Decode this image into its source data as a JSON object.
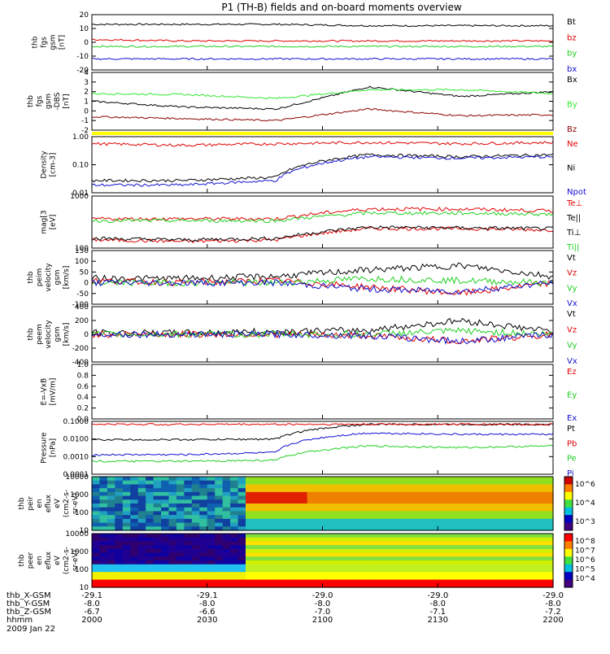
{
  "title": "P1 (TH-B) fields and on-board moments overview",
  "date": "2009 Jan 22",
  "time_ticks": [
    "2000",
    "2030",
    "2100",
    "2130",
    "2200"
  ],
  "ephemeris": [
    {
      "label": "thb_X-GSM",
      "values": [
        "-29.1",
        "-29.1",
        "-29.0",
        "-29.0",
        "-29.0"
      ]
    },
    {
      "label": "thb_Y-GSM",
      "values": [
        "-8.0",
        "-8.0",
        "-8.0",
        "-8.0",
        "-8.0"
      ]
    },
    {
      "label": "thb_Z-GSM",
      "values": [
        "-6.7",
        "-6.6",
        "-7.0",
        "-7.1",
        "-7.2"
      ]
    },
    {
      "label": "hhmm",
      "values": [
        "2000",
        "2030",
        "2100",
        "2130",
        "2200"
      ]
    }
  ],
  "colors": {
    "black": "#000000",
    "red": "#e00000",
    "green": "#20d020",
    "blue": "#1010d0",
    "darkred": "#8b0000",
    "lightgreen": "#30e830",
    "yellow": "#ffff00"
  },
  "chart_data": [
    {
      "type": "line",
      "panel": "fgs",
      "ylabel": [
        "thb",
        "fgs",
        "gsm",
        "[nT]"
      ],
      "ylim": [
        -20,
        20
      ],
      "yticks": [
        "20",
        "10",
        "0",
        "-10",
        "-20"
      ],
      "series": [
        {
          "name": "Bt",
          "values": [
            13,
            13,
            13,
            12,
            12,
            12
          ]
        },
        {
          "name": "bz",
          "values": [
            2,
            1,
            1,
            1,
            1,
            1
          ]
        },
        {
          "name": "by",
          "values": [
            -3,
            -3,
            -3,
            -3,
            -3,
            -3
          ]
        },
        {
          "name": "bx",
          "values": [
            -12,
            -12,
            -12,
            -12,
            -12,
            -12
          ]
        }
      ]
    },
    {
      "type": "line",
      "panel": "fgs_dbs",
      "ylabel": [
        "thb",
        "fgs",
        "gsm",
        "-DBS",
        "[nT]"
      ],
      "ylim": [
        -2,
        4
      ],
      "yticks": [
        "4",
        "3",
        "2",
        "1",
        "0",
        "-1",
        "-2"
      ],
      "series": [
        {
          "name": "Bx",
          "values": [
            1,
            0.4,
            0.2,
            2.5,
            1.5,
            2.0
          ]
        },
        {
          "name": "By",
          "values": [
            1.8,
            1.7,
            1.3,
            2.2,
            2.2,
            1.8
          ]
        },
        {
          "name": "Bz",
          "values": [
            -0.6,
            -0.8,
            -1.0,
            0.2,
            -0.5,
            -0.4
          ]
        }
      ]
    },
    {
      "type": "line",
      "panel": "density",
      "ylabel": [
        "Density",
        "[cm-3]"
      ],
      "yscale": "log",
      "ylim": [
        0.01,
        1.5
      ],
      "yticks": [
        "1.00",
        "0.10",
        "0.01"
      ],
      "series": [
        {
          "name": "Ne",
          "values": [
            0.8,
            0.7,
            0.8,
            0.9,
            0.8,
            0.9
          ]
        },
        {
          "name": "Ni",
          "values": [
            0.03,
            0.03,
            0.04,
            0.3,
            0.25,
            0.3
          ]
        },
        {
          "name": "Npot",
          "values": [
            0.02,
            0.02,
            0.03,
            0.25,
            0.22,
            0.25
          ]
        }
      ]
    },
    {
      "type": "line",
      "panel": "temperature",
      "ylabel": [
        "mag[3",
        "[eV]"
      ],
      "yscale": "log",
      "ylim": [
        50,
        2000
      ],
      "yticks": [
        "1000",
        "100"
      ],
      "series": [
        {
          "name": "Te⊥",
          "values": [
            90,
            80,
            90,
            200,
            200,
            180
          ]
        },
        {
          "name": "Te||",
          "values": [
            100,
            90,
            100,
            220,
            210,
            200
          ]
        },
        {
          "name": "Ti⊥",
          "values": [
            400,
            400,
            400,
            800,
            800,
            700
          ]
        },
        {
          "name": "Ti||",
          "values": [
            350,
            350,
            350,
            600,
            600,
            550
          ]
        }
      ]
    },
    {
      "type": "line",
      "panel": "peim_velocity",
      "ylabel": [
        "thb",
        "peim",
        "velocity",
        "gsm",
        "[km/s]"
      ],
      "ylim": [
        -100,
        150
      ],
      "yticks": [
        "150",
        "100",
        "50",
        "0",
        "-50",
        "-100"
      ],
      "series": [
        {
          "name": "Vt",
          "values": [
            20,
            20,
            30,
            60,
            80,
            30
          ]
        },
        {
          "name": "Vz",
          "values": [
            10,
            0,
            10,
            -20,
            -50,
            0
          ]
        },
        {
          "name": "Vy",
          "values": [
            0,
            0,
            0,
            20,
            10,
            0
          ]
        },
        {
          "name": "Vx",
          "values": [
            0,
            0,
            0,
            -30,
            -40,
            0
          ]
        }
      ]
    },
    {
      "type": "line",
      "panel": "peem_velocity",
      "ylabel": [
        "thb",
        "peem",
        "velocity",
        "gsm",
        "[km/s]"
      ],
      "ylim": [
        -400,
        400
      ],
      "yticks": [
        "400",
        "200",
        "0",
        "-200",
        "-400"
      ],
      "series": [
        {
          "name": "Vt",
          "values": [
            20,
            20,
            40,
            60,
            200,
            40
          ]
        },
        {
          "name": "Vz",
          "values": [
            0,
            0,
            0,
            -20,
            -100,
            0
          ]
        },
        {
          "name": "Vy",
          "values": [
            0,
            0,
            0,
            0,
            50,
            0
          ]
        },
        {
          "name": "Vx",
          "values": [
            0,
            0,
            0,
            -20,
            -100,
            0
          ]
        }
      ]
    },
    {
      "type": "line",
      "panel": "efield",
      "ylabel": [
        "E=-VxB",
        "[mV/m]"
      ],
      "ylim": [
        0,
        1
      ],
      "yticks": [
        "1.0",
        "0.8",
        "0.6",
        "0.4",
        "0.2",
        "0.0"
      ],
      "series": [
        {
          "name": "Ez",
          "values": []
        },
        {
          "name": "Ey",
          "values": []
        },
        {
          "name": "Ex",
          "values": []
        }
      ]
    },
    {
      "type": "line",
      "panel": "pressure",
      "ylabel": [
        "Pressure",
        "[nPa]"
      ],
      "yscale": "log",
      "ylim": [
        0.0001,
        0.15
      ],
      "yticks": [
        "0.1000",
        "0.0100",
        "0.0010",
        "0.0001"
      ],
      "series": [
        {
          "name": "Pt",
          "values": [
            0.012,
            0.012,
            0.013,
            0.1,
            0.1,
            0.1
          ]
        },
        {
          "name": "Pb",
          "values": [
            0.1,
            0.1,
            0.1,
            0.1,
            0.1,
            0.1
          ]
        },
        {
          "name": "Pe",
          "values": [
            0.0006,
            0.0006,
            0.0007,
            0.005,
            0.004,
            0.005
          ]
        },
        {
          "name": "Pi",
          "values": [
            0.0015,
            0.0015,
            0.002,
            0.03,
            0.025,
            0.025
          ]
        }
      ]
    },
    {
      "type": "heatmap",
      "panel": "peir_eflux",
      "ylabel": [
        "thb",
        "peir",
        "en",
        "eflux",
        "eV",
        "(cm2-s-",
        "sr-eV)"
      ],
      "yscale": "log",
      "yticks": [
        "10000",
        "1000",
        "100",
        "10"
      ],
      "colorbar_ticks": [
        "10^6",
        "10^4",
        "10^3"
      ]
    },
    {
      "type": "heatmap",
      "panel": "peer_eflux",
      "ylabel": [
        "thb",
        "peer",
        "en",
        "eflux",
        "eV",
        "(cm2-s-",
        "sr-eV)"
      ],
      "yscale": "log",
      "yticks": [
        "10000",
        "1000",
        "100",
        "10"
      ],
      "colorbar_ticks": [
        "10^8",
        "10^7",
        "10^6",
        "10^5",
        "10^4"
      ]
    }
  ]
}
